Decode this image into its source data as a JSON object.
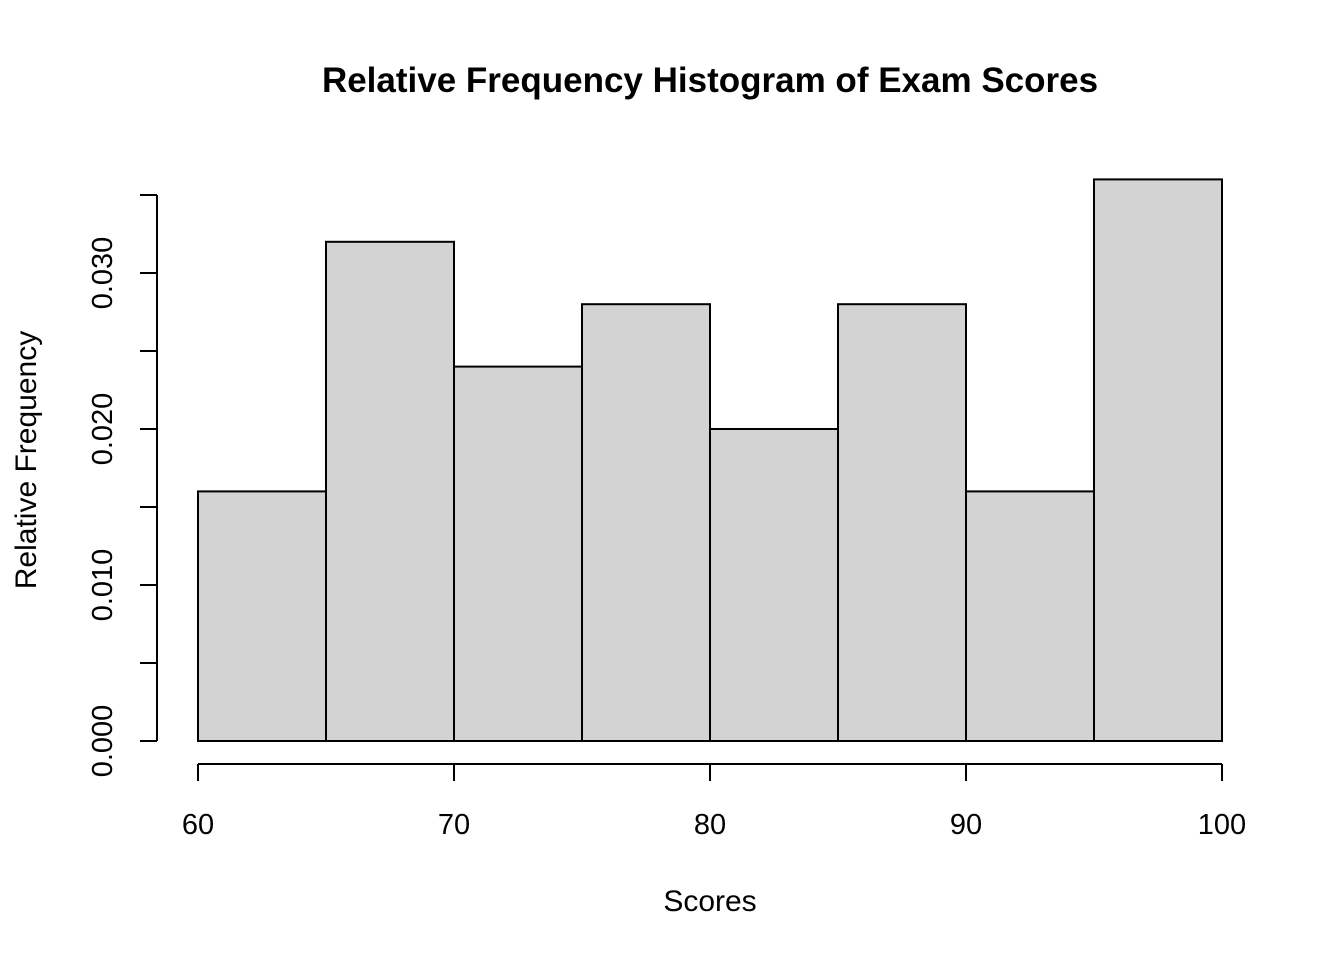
{
  "chart_data": {
    "type": "bar",
    "title": "Relative Frequency Histogram of Exam Scores",
    "xlabel": "Scores",
    "ylabel": "Relative Frequency",
    "bins": [
      {
        "start": 60,
        "end": 65,
        "value": 0.016
      },
      {
        "start": 65,
        "end": 70,
        "value": 0.032
      },
      {
        "start": 70,
        "end": 75,
        "value": 0.024
      },
      {
        "start": 75,
        "end": 80,
        "value": 0.028
      },
      {
        "start": 80,
        "end": 85,
        "value": 0.02
      },
      {
        "start": 85,
        "end": 90,
        "value": 0.028
      },
      {
        "start": 90,
        "end": 95,
        "value": 0.016
      },
      {
        "start": 95,
        "end": 100,
        "value": 0.036
      }
    ],
    "xlim": [
      60,
      100
    ],
    "ylim": [
      0,
      0.035
    ],
    "x_ticks": [
      60,
      70,
      80,
      90,
      100
    ],
    "x_tick_labels": [
      "60",
      "70",
      "80",
      "90",
      "100"
    ],
    "y_ticks": [
      0,
      0.005,
      0.01,
      0.015,
      0.02,
      0.025,
      0.03,
      0.035
    ],
    "y_tick_labels": [
      {
        "value": 0,
        "label": "0.000"
      },
      {
        "value": 0.01,
        "label": "0.010"
      },
      {
        "value": 0.02,
        "label": "0.020"
      },
      {
        "value": 0.03,
        "label": "0.030"
      }
    ],
    "grid": false,
    "bar_color": "#d3d3d3",
    "edge_color": "#000000"
  }
}
